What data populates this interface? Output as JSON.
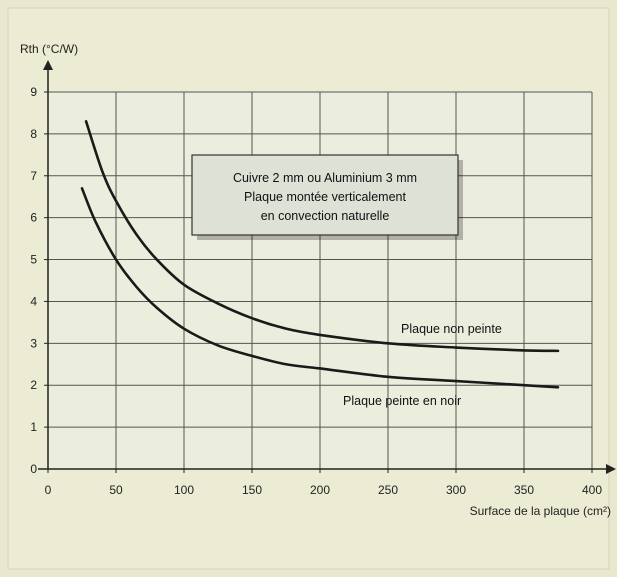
{
  "chart_data": {
    "type": "line",
    "ylabel": "Rth (°C/W)",
    "xlabel": "Surface de la plaque (cm²)",
    "xlim": [
      0,
      400
    ],
    "ylim": [
      0,
      9
    ],
    "x_ticks": [
      0,
      50,
      100,
      150,
      200,
      250,
      300,
      350,
      400
    ],
    "y_ticks": [
      0,
      1,
      2,
      3,
      4,
      5,
      6,
      7,
      8,
      9
    ],
    "grid": true,
    "annotation": {
      "lines": [
        "Cuivre 2 mm ou Aluminium 3 mm",
        "Plaque montée verticalement",
        "en convection naturelle"
      ]
    },
    "series": [
      {
        "name": "Plaque non peinte",
        "x": [
          28,
          40,
          50,
          65,
          80,
          100,
          125,
          150,
          175,
          200,
          250,
          300,
          350,
          375
        ],
        "y": [
          8.3,
          7.1,
          6.4,
          5.6,
          5.0,
          4.4,
          3.95,
          3.6,
          3.35,
          3.2,
          3.0,
          2.9,
          2.83,
          2.82
        ]
      },
      {
        "name": "Plaque peinte en noir",
        "x": [
          25,
          35,
          50,
          65,
          80,
          100,
          125,
          150,
          175,
          200,
          250,
          300,
          350,
          375
        ],
        "y": [
          6.7,
          5.9,
          5.0,
          4.35,
          3.85,
          3.35,
          2.95,
          2.7,
          2.5,
          2.4,
          2.2,
          2.1,
          2.0,
          1.95
        ]
      }
    ]
  }
}
